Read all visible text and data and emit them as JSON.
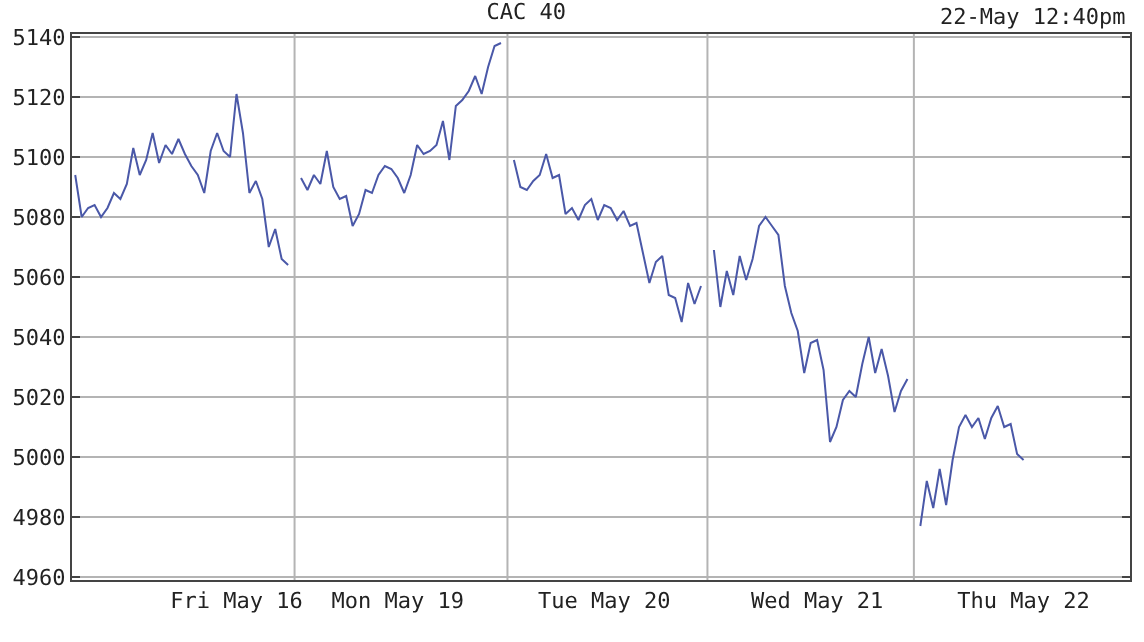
{
  "chart_data": {
    "type": "line",
    "title": "CAC 40",
    "annotations": [
      "22-May 12:40pm"
    ],
    "categories": [
      null,
      null,
      null,
      null,
      null,
      null,
      null,
      null,
      null,
      null,
      null,
      null,
      null,
      null,
      null,
      null,
      null,
      null,
      null,
      null,
      null,
      null,
      null,
      null,
      null,
      "Fri May 16",
      null,
      null,
      null,
      null,
      null,
      null,
      null,
      null,
      null,
      null,
      null,
      null,
      null,
      null,
      null,
      null,
      null,
      null,
      null,
      null,
      null,
      null,
      null,
      null,
      "Mon May 19",
      null,
      null,
      null,
      null,
      null,
      null,
      null,
      null,
      null,
      null,
      null,
      null,
      null,
      null,
      null,
      null,
      null,
      null,
      null,
      null,
      null,
      null,
      null,
      null,
      null,
      null,
      null,
      null,
      null,
      null,
      null,
      "Tue May 20",
      null,
      null,
      null,
      null,
      null,
      null,
      null,
      null,
      null,
      null,
      null,
      null,
      null,
      null,
      null,
      null,
      null,
      null,
      null,
      null,
      null,
      null,
      null,
      null,
      null,
      null,
      null,
      null,
      null,
      null,
      null,
      null,
      "Wed May 21",
      null,
      null,
      null,
      null,
      null,
      null,
      null,
      null,
      null,
      null,
      null,
      null,
      null,
      null,
      null,
      null,
      null,
      null,
      null,
      null,
      null,
      null,
      null,
      null,
      null,
      null,
      null,
      null,
      null,
      null,
      null,
      "Thu May 22",
      null,
      null,
      null,
      null,
      null,
      null,
      null,
      null,
      null,
      null,
      null,
      null,
      null,
      null,
      null,
      null
    ],
    "ylim": [
      4959,
      5141
    ],
    "yticks": [
      4960,
      4980,
      5000,
      5020,
      5040,
      5060,
      5080,
      5100,
      5120,
      5140
    ],
    "grid": true,
    "marker": "none",
    "line_style": "solid",
    "series": [
      {
        "color": "#4a58a8",
        "values": [
          5094,
          5080,
          5083,
          5084,
          5080,
          5083,
          5088,
          5086,
          5091,
          5103,
          5094,
          5099,
          5108,
          5098,
          5104,
          5101,
          5106,
          5101,
          5097,
          5094,
          5088,
          5102,
          5108,
          5102,
          5100,
          5121,
          5108,
          5088,
          5092,
          5086,
          5070,
          5076,
          5066,
          5064,
          null,
          5093,
          5089,
          5094,
          5091,
          5102,
          5090,
          5086,
          5087,
          5077,
          5081,
          5089,
          5088,
          5094,
          5097,
          5096,
          5093,
          5088,
          5094,
          5104,
          5101,
          5102,
          5104,
          5112,
          5099,
          5117,
          5119,
          5122,
          5127,
          5121,
          5130,
          5137,
          5138,
          null,
          5099,
          5090,
          5089,
          5092,
          5094,
          5101,
          5093,
          5094,
          5081,
          5083,
          5079,
          5084,
          5086,
          5079,
          5084,
          5083,
          5079,
          5082,
          5077,
          5078,
          5068,
          5058,
          5065,
          5067,
          5054,
          5053,
          5045,
          5058,
          5051,
          5057,
          null,
          5069,
          5050,
          5062,
          5054,
          5067,
          5059,
          5066,
          5077,
          5080,
          5077,
          5074,
          5057,
          5048,
          5042,
          5028,
          5038,
          5039,
          5029,
          5005,
          5010,
          5019,
          5022,
          5020,
          5031,
          5040,
          5028,
          5036,
          5027,
          5015,
          5022,
          5026,
          null,
          4977,
          4992,
          4983,
          4996,
          4984,
          4999,
          5010,
          5014,
          5010,
          5013,
          5006,
          5013,
          5017,
          5010,
          5011,
          5001,
          4999,
          null,
          null,
          null,
          null,
          null,
          null,
          null,
          null,
          null,
          null,
          null,
          null,
          null,
          null,
          null,
          null
        ]
      }
    ]
  }
}
